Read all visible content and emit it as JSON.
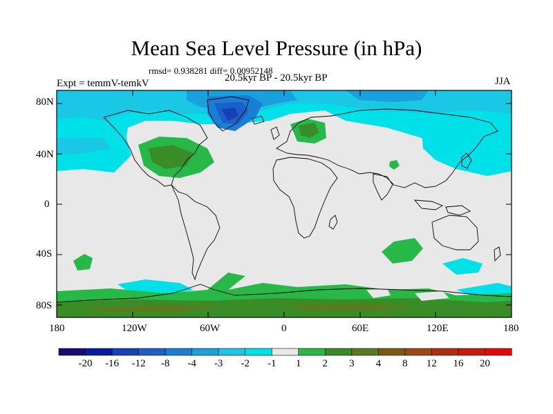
{
  "title": "Mean Sea Level Pressure (in hPa)",
  "stats": "rmsd= 0.938281 diff= 0.00952148",
  "experiment": "Expt = temmV-temkV",
  "period": "20.5kyr BP - 20.5kyr BP",
  "season": "JJA",
  "lat_ticks": [
    "80N",
    "40N",
    "0",
    "40S",
    "80S"
  ],
  "lon_ticks": [
    "180",
    "120W",
    "60W",
    "0",
    "60E",
    "120E",
    "180"
  ],
  "colorbar": {
    "labels": [
      "-20",
      "-16",
      "-12",
      "-8",
      "-4",
      "-3",
      "-2",
      "-1",
      "1",
      "2",
      "3",
      "4",
      "8",
      "12",
      "16",
      "20"
    ],
    "colors": [
      "#1a0a78",
      "#0a1aa0",
      "#1640b8",
      "#1a60c8",
      "#1a7ed4",
      "#1aa0dc",
      "#1ac8e6",
      "#00e0e8",
      "#e8e8e8",
      "#28b848",
      "#3a8c28",
      "#5a7a1e",
      "#7a5a14",
      "#9a4a14",
      "#b02e10",
      "#c81a0a",
      "#e00a0a"
    ]
  },
  "map": {
    "background_color": "#e8e8e8",
    "coastline_color": "#000000"
  }
}
